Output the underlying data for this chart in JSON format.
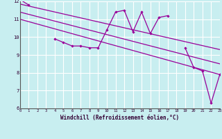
{
  "xlabel": "Windchill (Refroidissement éolien,°C)",
  "x": [
    0,
    1,
    2,
    3,
    4,
    5,
    6,
    7,
    8,
    9,
    10,
    11,
    12,
    13,
    14,
    15,
    16,
    17,
    18,
    19,
    20,
    21,
    22,
    23
  ],
  "y_main": [
    12.1,
    11.8,
    null,
    null,
    9.9,
    9.7,
    9.5,
    9.5,
    9.4,
    9.4,
    10.4,
    11.4,
    11.5,
    10.3,
    11.4,
    10.2,
    11.1,
    11.2,
    null,
    9.4,
    8.3,
    8.1,
    6.3,
    7.9
  ],
  "trend1_x": [
    0,
    23
  ],
  "trend1_y": [
    11.85,
    9.3
  ],
  "trend2_x": [
    0,
    23
  ],
  "trend2_y": [
    11.4,
    8.5
  ],
  "trend3_x": [
    0,
    23
  ],
  "trend3_y": [
    11.0,
    7.9
  ],
  "color": "#990099",
  "bg_color": "#c8eef0",
  "grid_color": "#ffffff",
  "ylim": [
    6,
    12
  ],
  "xlim": [
    0,
    23
  ]
}
